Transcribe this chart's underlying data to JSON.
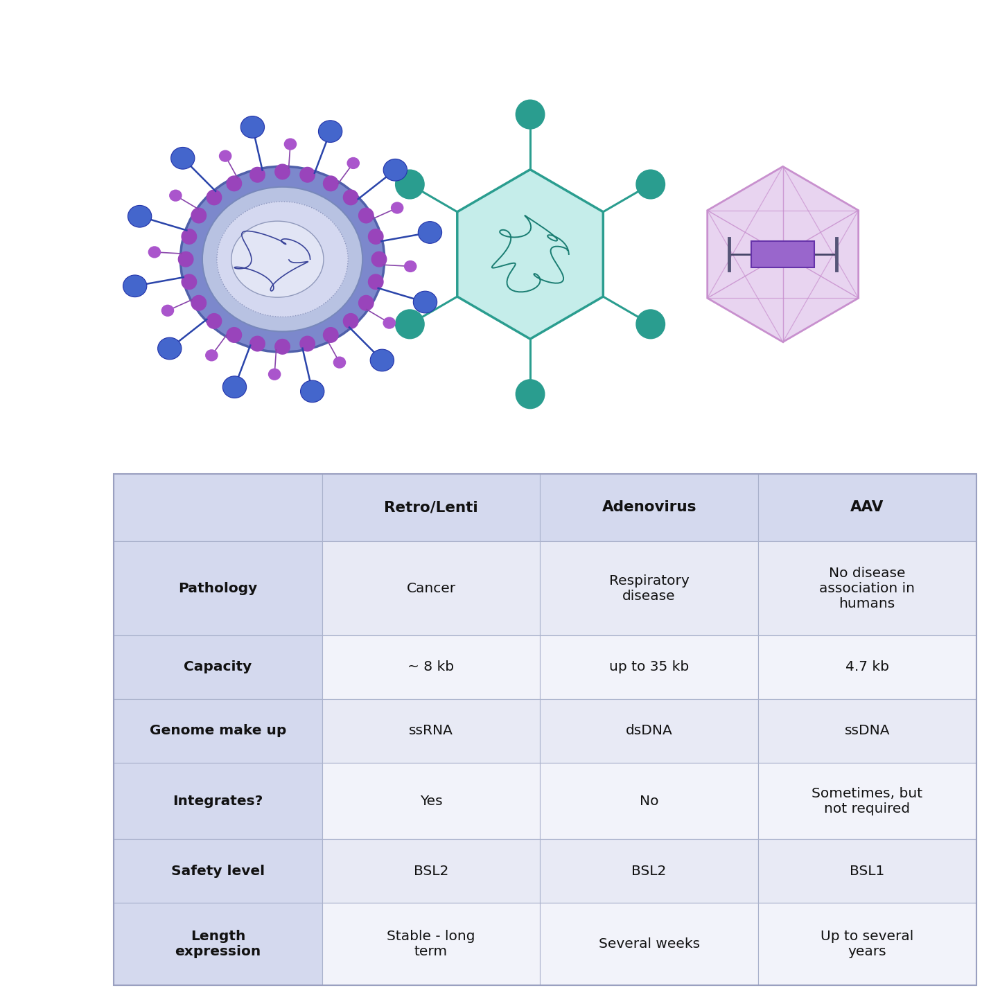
{
  "bg_color": "#ffffff",
  "header_bg": "#d4d9ee",
  "row_label_bg": "#d4d9ee",
  "alt_row_bg": "#e8eaf5",
  "plain_row_bg": "#f2f3fa",
  "header_text_color": "#111111",
  "columns": [
    "Retro/Lenti",
    "Adenovirus",
    "AAV"
  ],
  "rows": [
    {
      "label": "Pathology",
      "values": [
        "Cancer",
        "Respiratory\ndisease",
        "No disease\nassociation in\nhumans"
      ]
    },
    {
      "label": "Capacity",
      "values": [
        "~ 8 kb",
        "up to 35 kb",
        "4.7 kb"
      ]
    },
    {
      "label": "Genome make up",
      "values": [
        "ssRNA",
        "dsDNA",
        "ssDNA"
      ]
    },
    {
      "label": "Integrates?",
      "values": [
        "Yes",
        "No",
        "Sometimes, but\nnot required"
      ]
    },
    {
      "label": "Safety level",
      "values": [
        "BSL2",
        "BSL2",
        "BSL1"
      ]
    },
    {
      "label": "Length\nexpression",
      "values": [
        "Stable - long\nterm",
        "Several weeks",
        "Up to several\nyears"
      ]
    }
  ],
  "adeno_edge_color": "#2a9d8f",
  "adeno_face_color": "#c5edea",
  "adeno_rna_color": "#1a7d72",
  "aav_edge_color": "#c890ce",
  "aav_face_color": "#e8d4f0"
}
